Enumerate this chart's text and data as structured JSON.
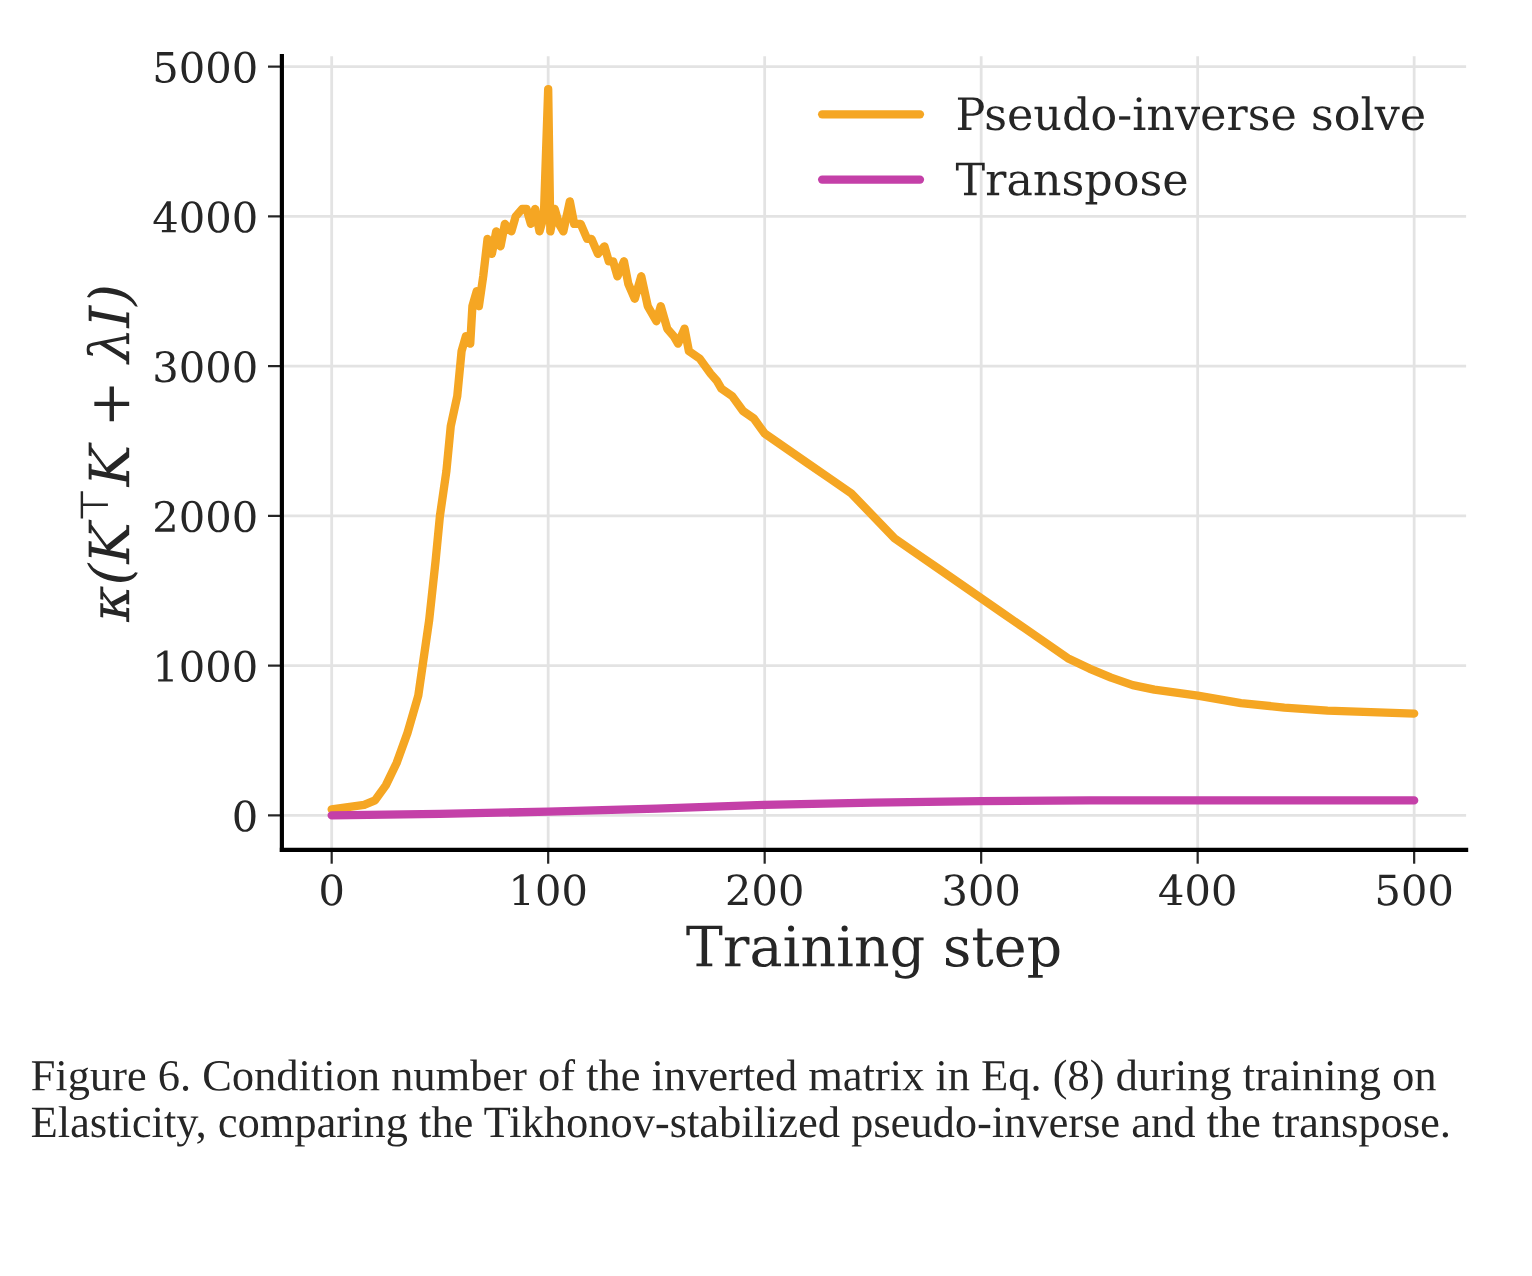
{
  "chart_data": {
    "type": "line",
    "xlabel": "Training step",
    "ylabel": "κ(K$^{⊤}$K + λI)",
    "xlim": [
      -23,
      524
    ],
    "xticks": [
      0,
      100,
      200,
      300,
      400,
      500
    ],
    "ylim": [
      -230,
      5070
    ],
    "yticks": [
      0,
      1000,
      2000,
      3000,
      4000,
      5000
    ],
    "grid": true,
    "legend": "top right",
    "marker": "none",
    "line_style": "solid",
    "series": [
      {
        "name": "Pseudo-inverse solve",
        "color": "#f5a623",
        "x": [
          0,
          5,
          10,
          15,
          20,
          25,
          30,
          35,
          40,
          42,
          45,
          48,
          50,
          53,
          55,
          58,
          60,
          62,
          64,
          65,
          67,
          68,
          70,
          72,
          74,
          76,
          78,
          80,
          83,
          85,
          88,
          90,
          92,
          94,
          96,
          98,
          100,
          101,
          103,
          105,
          107,
          110,
          112,
          115,
          118,
          120,
          123,
          126,
          128,
          130,
          132,
          135,
          137,
          140,
          143,
          146,
          150,
          152,
          155,
          158,
          160,
          163,
          165,
          170,
          175,
          178,
          180,
          185,
          190,
          195,
          200,
          210,
          220,
          230,
          240,
          250,
          260,
          270,
          280,
          290,
          300,
          310,
          320,
          330,
          340,
          350,
          360,
          370,
          380,
          390,
          400,
          420,
          440,
          460,
          480,
          500
        ],
        "values": [
          40,
          50,
          60,
          70,
          100,
          200,
          350,
          550,
          800,
          1000,
          1300,
          1700,
          2000,
          2300,
          2600,
          2800,
          3100,
          3200,
          3150,
          3400,
          3500,
          3400,
          3600,
          3850,
          3750,
          3900,
          3800,
          3950,
          3900,
          4000,
          4050,
          4050,
          3950,
          4050,
          3900,
          4000,
          4850,
          3900,
          4050,
          3950,
          3900,
          4100,
          3950,
          3950,
          3850,
          3850,
          3750,
          3800,
          3700,
          3700,
          3600,
          3700,
          3550,
          3450,
          3600,
          3400,
          3300,
          3400,
          3250,
          3200,
          3150,
          3250,
          3100,
          3050,
          2950,
          2900,
          2850,
          2800,
          2700,
          2650,
          2550,
          2450,
          2350,
          2250,
          2150,
          2000,
          1850,
          1750,
          1650,
          1550,
          1450,
          1350,
          1250,
          1150,
          1050,
          980,
          920,
          870,
          840,
          820,
          800,
          750,
          720,
          700,
          690,
          680
        ]
      },
      {
        "name": "Transpose",
        "color": "#c440a8",
        "x": [
          0,
          50,
          100,
          150,
          200,
          250,
          300,
          350,
          400,
          450,
          500
        ],
        "values": [
          0,
          10,
          25,
          45,
          70,
          85,
          95,
          100,
          100,
          100,
          100
        ]
      }
    ],
    "annotations": [
      "Figure 6. Condition number of the inverted matrix in Eq. (8) during training on Elasticity, comparing the Tikhonov-stabilized pseudo-inverse and the transpose."
    ]
  }
}
